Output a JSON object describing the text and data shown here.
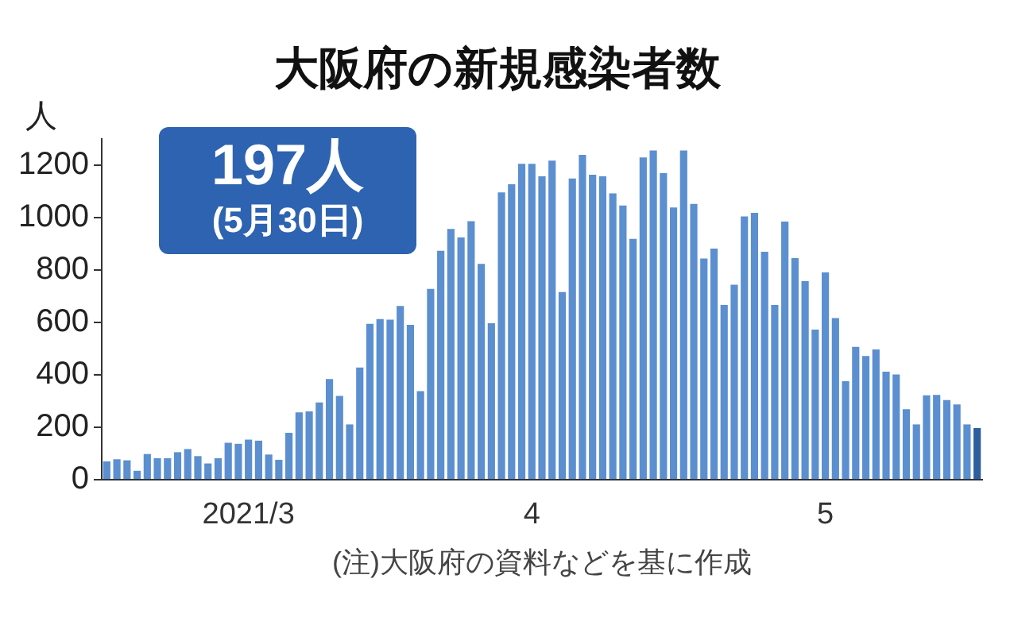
{
  "chart_data": {
    "type": "bar",
    "title": "大阪府の新規感染者数",
    "ylabel": "人",
    "annotations": [
      "197人",
      "(5月30日)",
      "(注)大阪府の資料などを基に作成"
    ],
    "categories": [
      null,
      null,
      null,
      null,
      null,
      null,
      null,
      null,
      null,
      null,
      null,
      null,
      null,
      null,
      "2021/3",
      null,
      null,
      null,
      null,
      null,
      null,
      null,
      null,
      null,
      null,
      null,
      null,
      null,
      null,
      null,
      null,
      null,
      null,
      null,
      null,
      null,
      null,
      null,
      null,
      null,
      null,
      null,
      "4",
      null,
      null,
      null,
      null,
      null,
      null,
      null,
      null,
      null,
      null,
      null,
      null,
      null,
      null,
      null,
      null,
      null,
      null,
      null,
      null,
      null,
      null,
      null,
      null,
      null,
      null,
      null,
      null,
      "5",
      null,
      null,
      null,
      null,
      null,
      null,
      null,
      null,
      null,
      null,
      null,
      null,
      null,
      null,
      null
    ],
    "values": [
      70,
      78,
      74,
      34,
      98,
      82,
      82,
      105,
      117,
      90,
      62,
      82,
      141,
      137,
      153,
      149,
      96,
      76,
      179,
      257,
      261,
      295,
      384,
      320,
      211,
      428,
      595,
      613,
      611,
      663,
      591,
      338,
      728,
      874,
      957,
      925,
      987,
      824,
      597,
      1097,
      1128,
      1206,
      1206,
      1158,
      1218,
      716,
      1150,
      1240,
      1164,
      1158,
      1093,
      1047,
      919,
      1230,
      1257,
      1170,
      1039,
      1257,
      1053,
      844,
      882,
      667,
      744,
      1005,
      1019,
      870,
      667,
      985,
      846,
      758,
      573,
      791,
      617,
      376,
      507,
      472,
      497,
      412,
      402,
      269,
      211,
      322,
      324,
      304,
      287,
      211,
      197
    ],
    "colors": [
      "#5b8fd0",
      "#5b8fd0",
      "#5b8fd0",
      "#5b8fd0",
      "#5b8fd0",
      "#5b8fd0",
      "#5b8fd0",
      "#5b8fd0",
      "#5b8fd0",
      "#5b8fd0",
      "#5b8fd0",
      "#5b8fd0",
      "#5b8fd0",
      "#5b8fd0",
      "#5b8fd0",
      "#5b8fd0",
      "#5b8fd0",
      "#5b8fd0",
      "#5b8fd0",
      "#5b8fd0",
      "#5b8fd0",
      "#5b8fd0",
      "#5b8fd0",
      "#5b8fd0",
      "#5b8fd0",
      "#5b8fd0",
      "#5b8fd0",
      "#5b8fd0",
      "#5b8fd0",
      "#5b8fd0",
      "#5b8fd0",
      "#5b8fd0",
      "#5b8fd0",
      "#5b8fd0",
      "#5b8fd0",
      "#5b8fd0",
      "#5b8fd0",
      "#5b8fd0",
      "#5b8fd0",
      "#5b8fd0",
      "#5b8fd0",
      "#5b8fd0",
      "#5b8fd0",
      "#5b8fd0",
      "#5b8fd0",
      "#5b8fd0",
      "#5b8fd0",
      "#5b8fd0",
      "#5b8fd0",
      "#5b8fd0",
      "#5b8fd0",
      "#5b8fd0",
      "#5b8fd0",
      "#5b8fd0",
      "#5b8fd0",
      "#5b8fd0",
      "#5b8fd0",
      "#5b8fd0",
      "#5b8fd0",
      "#5b8fd0",
      "#5b8fd0",
      "#5b8fd0",
      "#5b8fd0",
      "#5b8fd0",
      "#5b8fd0",
      "#5b8fd0",
      "#5b8fd0",
      "#5b8fd0",
      "#5b8fd0",
      "#5b8fd0",
      "#5b8fd0",
      "#5b8fd0",
      "#5b8fd0",
      "#5b8fd0",
      "#5b8fd0",
      "#5b8fd0",
      "#5b8fd0",
      "#5b8fd0",
      "#5b8fd0",
      "#5b8fd0",
      "#5b8fd0",
      "#5b8fd0",
      "#5b8fd0",
      "#5b8fd0",
      "#5b8fd0",
      "#5b8fd0",
      "#2d5f9f"
    ],
    "ylim": [
      0,
      1300
    ],
    "yticks": [
      0,
      200,
      400,
      600,
      800,
      1000,
      1200
    ],
    "grid": false,
    "legend": false
  }
}
